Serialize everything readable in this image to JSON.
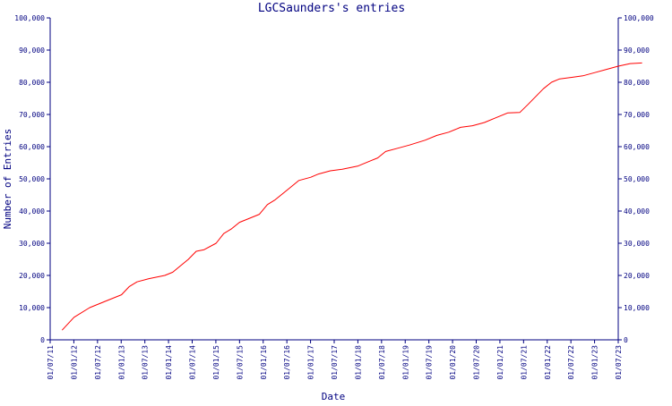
{
  "chart_data": {
    "type": "line",
    "title": "LGCSaunders's entries",
    "xlabel": "Date",
    "ylabel": "Number of Entries",
    "x_tick_labels": [
      "01/07/11",
      "01/01/12",
      "01/07/12",
      "01/01/13",
      "01/07/13",
      "01/01/14",
      "01/07/14",
      "01/01/15",
      "01/07/15",
      "01/01/16",
      "01/07/16",
      "01/01/17",
      "01/07/17",
      "01/01/18",
      "01/07/18",
      "01/01/19",
      "01/07/19",
      "01/01/20",
      "01/07/20",
      "01/01/21",
      "01/07/21",
      "01/01/22",
      "01/07/22",
      "01/01/23",
      "01/07/23"
    ],
    "y_tick_labels": [
      "0",
      "10,000",
      "20,000",
      "30,000",
      "40,000",
      "50,000",
      "60,000",
      "70,000",
      "80,000",
      "90,000",
      "100,000"
    ],
    "ylim": [
      0,
      100000
    ],
    "xlim": [
      "2011-07-01",
      "2023-07-01"
    ],
    "right_axis": true,
    "grid": false,
    "colors": {
      "axis": "#000080",
      "line": "#ff0000",
      "text": "#000080",
      "background": "#ffffff"
    },
    "series": [
      {
        "values": [
          [
            "2011-10-01",
            3000
          ],
          [
            "2012-01-01",
            7000
          ],
          [
            "2012-05-01",
            10000
          ],
          [
            "2012-10-01",
            12500
          ],
          [
            "2013-01-01",
            14000
          ],
          [
            "2013-03-01",
            16500
          ],
          [
            "2013-05-01",
            18000
          ],
          [
            "2013-08-01",
            19000
          ],
          [
            "2013-12-01",
            20000
          ],
          [
            "2014-02-01",
            21000
          ],
          [
            "2014-04-01",
            23000
          ],
          [
            "2014-06-01",
            25000
          ],
          [
            "2014-08-01",
            27500
          ],
          [
            "2014-10-01",
            28000
          ],
          [
            "2015-01-01",
            30000
          ],
          [
            "2015-03-01",
            33000
          ],
          [
            "2015-05-01",
            34500
          ],
          [
            "2015-07-01",
            36500
          ],
          [
            "2015-09-01",
            37500
          ],
          [
            "2015-12-01",
            39000
          ],
          [
            "2016-02-01",
            42000
          ],
          [
            "2016-04-01",
            43500
          ],
          [
            "2016-06-01",
            45500
          ],
          [
            "2016-08-01",
            47500
          ],
          [
            "2016-10-01",
            49500
          ],
          [
            "2017-01-01",
            50500
          ],
          [
            "2017-03-01",
            51500
          ],
          [
            "2017-06-01",
            52500
          ],
          [
            "2017-09-01",
            53000
          ],
          [
            "2018-01-01",
            54000
          ],
          [
            "2018-04-01",
            55500
          ],
          [
            "2018-06-01",
            56500
          ],
          [
            "2018-08-01",
            58500
          ],
          [
            "2018-11-01",
            59500
          ],
          [
            "2019-02-01",
            60500
          ],
          [
            "2019-06-01",
            62000
          ],
          [
            "2019-09-01",
            63500
          ],
          [
            "2019-12-01",
            64500
          ],
          [
            "2020-03-01",
            66000
          ],
          [
            "2020-06-01",
            66500
          ],
          [
            "2020-09-01",
            67500
          ],
          [
            "2020-12-01",
            69000
          ],
          [
            "2021-03-01",
            70500
          ],
          [
            "2021-06-01",
            70600
          ],
          [
            "2021-08-01",
            73000
          ],
          [
            "2021-10-01",
            75500
          ],
          [
            "2021-12-01",
            78000
          ],
          [
            "2022-02-01",
            80000
          ],
          [
            "2022-04-01",
            81000
          ],
          [
            "2022-07-01",
            81500
          ],
          [
            "2022-10-01",
            82000
          ],
          [
            "2023-01-01",
            83000
          ],
          [
            "2023-04-01",
            84000
          ],
          [
            "2023-07-01",
            85000
          ],
          [
            "2023-10-01",
            85800
          ],
          [
            "2024-01-01",
            86000
          ]
        ]
      }
    ]
  }
}
